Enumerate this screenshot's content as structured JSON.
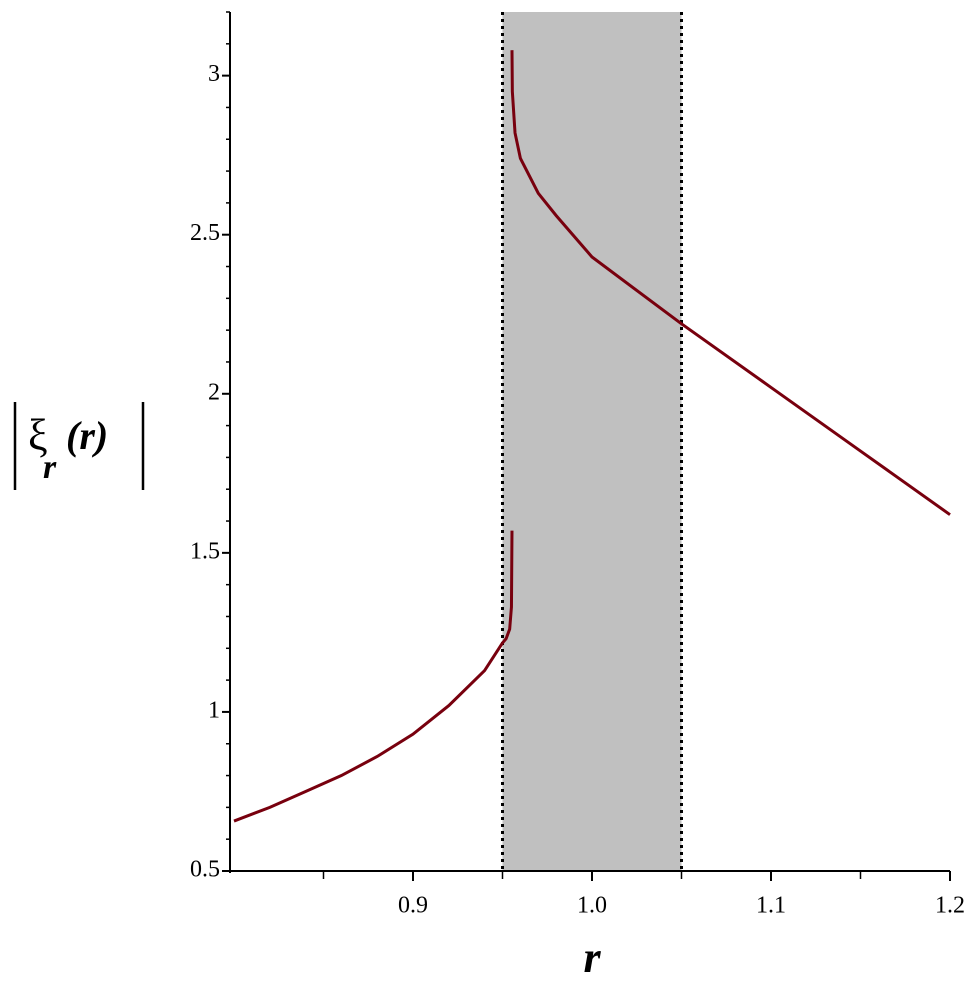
{
  "chart_data": {
    "type": "line",
    "xlabel": "r",
    "ylabel_parts": [
      "ξ",
      "r",
      "(r)"
    ],
    "xlim": [
      0.8,
      1.2
    ],
    "ylim": [
      0.5,
      3.2
    ],
    "xticks": [
      0.9,
      {
        "value": 1,
        "label": "1.0"
      },
      1.1,
      1.2
    ],
    "xminorticks": [
      0.85,
      0.95,
      1.05,
      1.15
    ],
    "yticks": [
      0.5,
      1,
      1.5,
      2,
      2.5,
      3
    ],
    "yminorticks": [
      0.6,
      0.7,
      0.8,
      0.9,
      1.1,
      1.2,
      1.3,
      1.4,
      1.6,
      1.7,
      1.8,
      1.9,
      2.1,
      2.2,
      2.3,
      2.4,
      2.6,
      2.7,
      2.8,
      2.9,
      3.1,
      3.2
    ],
    "shaded_region": [
      0.95,
      1.05
    ],
    "shade_color": "#c0c0c0",
    "series": [
      {
        "color": "#78000e",
        "x": [
          0.8,
          0.82,
          0.84,
          0.86,
          0.88,
          0.9,
          0.92,
          0.94,
          0.95,
          0.952,
          0.954,
          0.955,
          0.9553
        ],
        "values": [
          0.657,
          0.7,
          0.75,
          0.8,
          0.86,
          0.93,
          1.02,
          1.13,
          1.217,
          1.23,
          1.26,
          1.33,
          1.57
        ]
      },
      {
        "color": "#78000e",
        "x": [
          0.9553,
          0.9555,
          0.957,
          0.96,
          0.97,
          0.98,
          1.0,
          1.05,
          1.1,
          1.15,
          1.2
        ],
        "values": [
          3.08,
          2.95,
          2.82,
          2.74,
          2.63,
          2.56,
          2.43,
          2.22,
          2.02,
          1.82,
          1.62
        ]
      }
    ]
  }
}
